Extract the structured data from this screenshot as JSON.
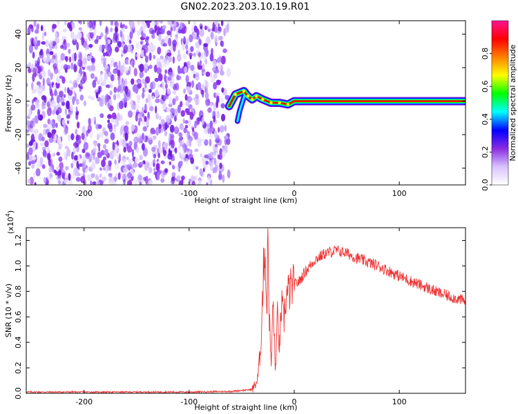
{
  "title": "GN02.2023.203.10.19.R01",
  "chart_data": [
    {
      "type": "heatmap",
      "xlabel": "Height of straight line (km)",
      "ylabel": "Frequency (Hz)",
      "xlim": [
        -255,
        163
      ],
      "ylim": [
        -50,
        48
      ],
      "xticks": [
        -200,
        -100,
        0,
        100
      ],
      "xtick_labels": [
        "-200",
        "-100",
        "0",
        "100"
      ],
      "yticks": [
        -40,
        -20,
        0,
        20,
        40
      ],
      "ytick_labels": [
        "-40",
        "-20",
        "0",
        "20",
        "40"
      ],
      "noise_region_x": [
        -255,
        -62
      ],
      "signal_track": [
        {
          "x": -62,
          "y": -3
        },
        {
          "x": -56,
          "y": 4
        },
        {
          "x": -48,
          "y": 6
        },
        {
          "x": -44,
          "y": 3
        },
        {
          "x": -40,
          "y": 1
        },
        {
          "x": -36,
          "y": 3
        },
        {
          "x": -30,
          "y": 1
        },
        {
          "x": -22,
          "y": -1
        },
        {
          "x": -14,
          "y": -1
        },
        {
          "x": -6,
          "y": -2
        },
        {
          "x": 0,
          "y": 0
        },
        {
          "x": 163,
          "y": 0
        }
      ],
      "side_branch": [
        {
          "x": -46,
          "y": 6
        },
        {
          "x": -49,
          "y": 0
        },
        {
          "x": -52,
          "y": -6
        },
        {
          "x": -54,
          "y": -12
        }
      ],
      "grid": false,
      "colorbar": {
        "label": "Normalized spectral amplitude",
        "range": [
          0.0,
          1.0
        ],
        "ticks": [
          0.0,
          0.2,
          0.4,
          0.6,
          0.8
        ],
        "tick_labels": [
          "0.0",
          "0.2",
          "0.4",
          "0.6",
          "0.8"
        ],
        "colors": [
          "#ffffff",
          "#d8c2ff",
          "#8a2be2",
          "#0000ff",
          "#00ffff",
          "#00ff00",
          "#ffff00",
          "#ff8000",
          "#ff0000",
          "#ff1493"
        ]
      }
    },
    {
      "type": "line",
      "xlabel": "Height of straight line (km)",
      "ylabel": "SNR (10 * v/v)",
      "exponent_label": "(x10",
      "exponent_sup": "4",
      "exponent_close": ")",
      "xlim": [
        -255,
        163
      ],
      "ylim": [
        0,
        1.3
      ],
      "xticks": [
        -200,
        -100,
        0,
        100
      ],
      "xtick_labels": [
        "-200",
        "-100",
        "0",
        "100"
      ],
      "yticks": [
        0.0,
        0.2,
        0.4,
        0.6,
        0.8,
        1.0,
        1.2
      ],
      "ytick_labels": [
        "0.0",
        "0.2",
        "0.4",
        "0.6",
        "0.8",
        "1.0",
        "1.2"
      ],
      "color": "#ee3333",
      "grid": false,
      "series": [
        {
          "x": [
            -255,
            -200,
            -150,
            -100,
            -60,
            -40,
            -35,
            -32,
            -30,
            -28,
            -26,
            -25,
            -24,
            -22,
            -20,
            -18,
            -16,
            -14,
            -12,
            -10,
            -8,
            -5,
            0,
            5,
            10,
            15,
            20,
            30,
            40,
            50,
            60,
            80,
            100,
            120,
            140,
            160,
            163
          ],
          "y": [
            0.01,
            0.01,
            0.01,
            0.01,
            0.015,
            0.03,
            0.1,
            0.35,
            0.8,
            1.2,
            0.6,
            1.28,
            0.7,
            0.2,
            0.75,
            0.15,
            0.6,
            0.35,
            0.7,
            0.55,
            0.75,
            0.8,
            0.85,
            0.88,
            0.95,
            1.0,
            1.05,
            1.1,
            1.12,
            1.1,
            1.06,
            1.0,
            0.92,
            0.85,
            0.78,
            0.73,
            0.72
          ]
        }
      ]
    }
  ]
}
